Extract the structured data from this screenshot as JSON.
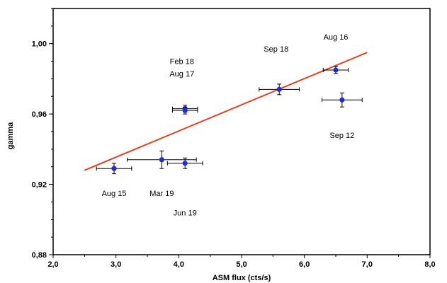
{
  "chart_data": {
    "type": "scatter",
    "xlabel": "ASM flux  (cts/s)",
    "ylabel": "gamma",
    "xlim": [
      2.0,
      8.0
    ],
    "ylim": [
      0.88,
      1.02
    ],
    "x_ticks": [
      "2,0",
      "3,0",
      "4,0",
      "5,0",
      "6,0",
      "7,0",
      "8,0"
    ],
    "y_ticks": [
      {
        "value": 0.88,
        "label": "0,88"
      },
      {
        "value": 0.92,
        "label": "0,92"
      },
      {
        "value": 0.96,
        "label": "0,96"
      },
      {
        "value": 1.0,
        "label": "1,00"
      }
    ],
    "grid": false,
    "points": [
      {
        "x": 2.97,
        "y": 0.929,
        "xerr": 0.28,
        "yerr": 0.003
      },
      {
        "x": 3.73,
        "y": 0.934,
        "xerr": 0.55,
        "yerr": 0.005
      },
      {
        "x": 4.1,
        "y": 0.932,
        "xerr": 0.28,
        "yerr": 0.003
      },
      {
        "x": 4.1,
        "y": 0.963,
        "xerr": 0.2,
        "yerr": 0.002
      },
      {
        "x": 4.1,
        "y": 0.962,
        "xerr": 0.2,
        "yerr": 0.002
      },
      {
        "x": 5.6,
        "y": 0.974,
        "xerr": 0.32,
        "yerr": 0.003
      },
      {
        "x": 6.5,
        "y": 0.985,
        "xerr": 0.2,
        "yerr": 0.002
      },
      {
        "x": 6.6,
        "y": 0.968,
        "xerr": 0.32,
        "yerr": 0.004
      }
    ],
    "fit_line": {
      "x": [
        2.5,
        7.0
      ],
      "y": [
        0.928,
        0.995
      ],
      "color": "#e8401c"
    },
    "point_color": "#1f2bd6",
    "annotations": [
      {
        "text": "Aug 16",
        "x": 6.5,
        "y": 1.004
      },
      {
        "text": "Sep 18",
        "x": 5.55,
        "y": 0.997
      },
      {
        "text": "Feb 18",
        "x": 4.05,
        "y": 0.99
      },
      {
        "text": "Aug 17",
        "x": 4.05,
        "y": 0.983
      },
      {
        "text": "Sep 12",
        "x": 6.6,
        "y": 0.948
      },
      {
        "text": "Aug 15",
        "x": 2.97,
        "y": 0.915
      },
      {
        "text": "Mar 19",
        "x": 3.73,
        "y": 0.915
      },
      {
        "text": "Jun 19",
        "x": 4.1,
        "y": 0.904
      }
    ]
  }
}
